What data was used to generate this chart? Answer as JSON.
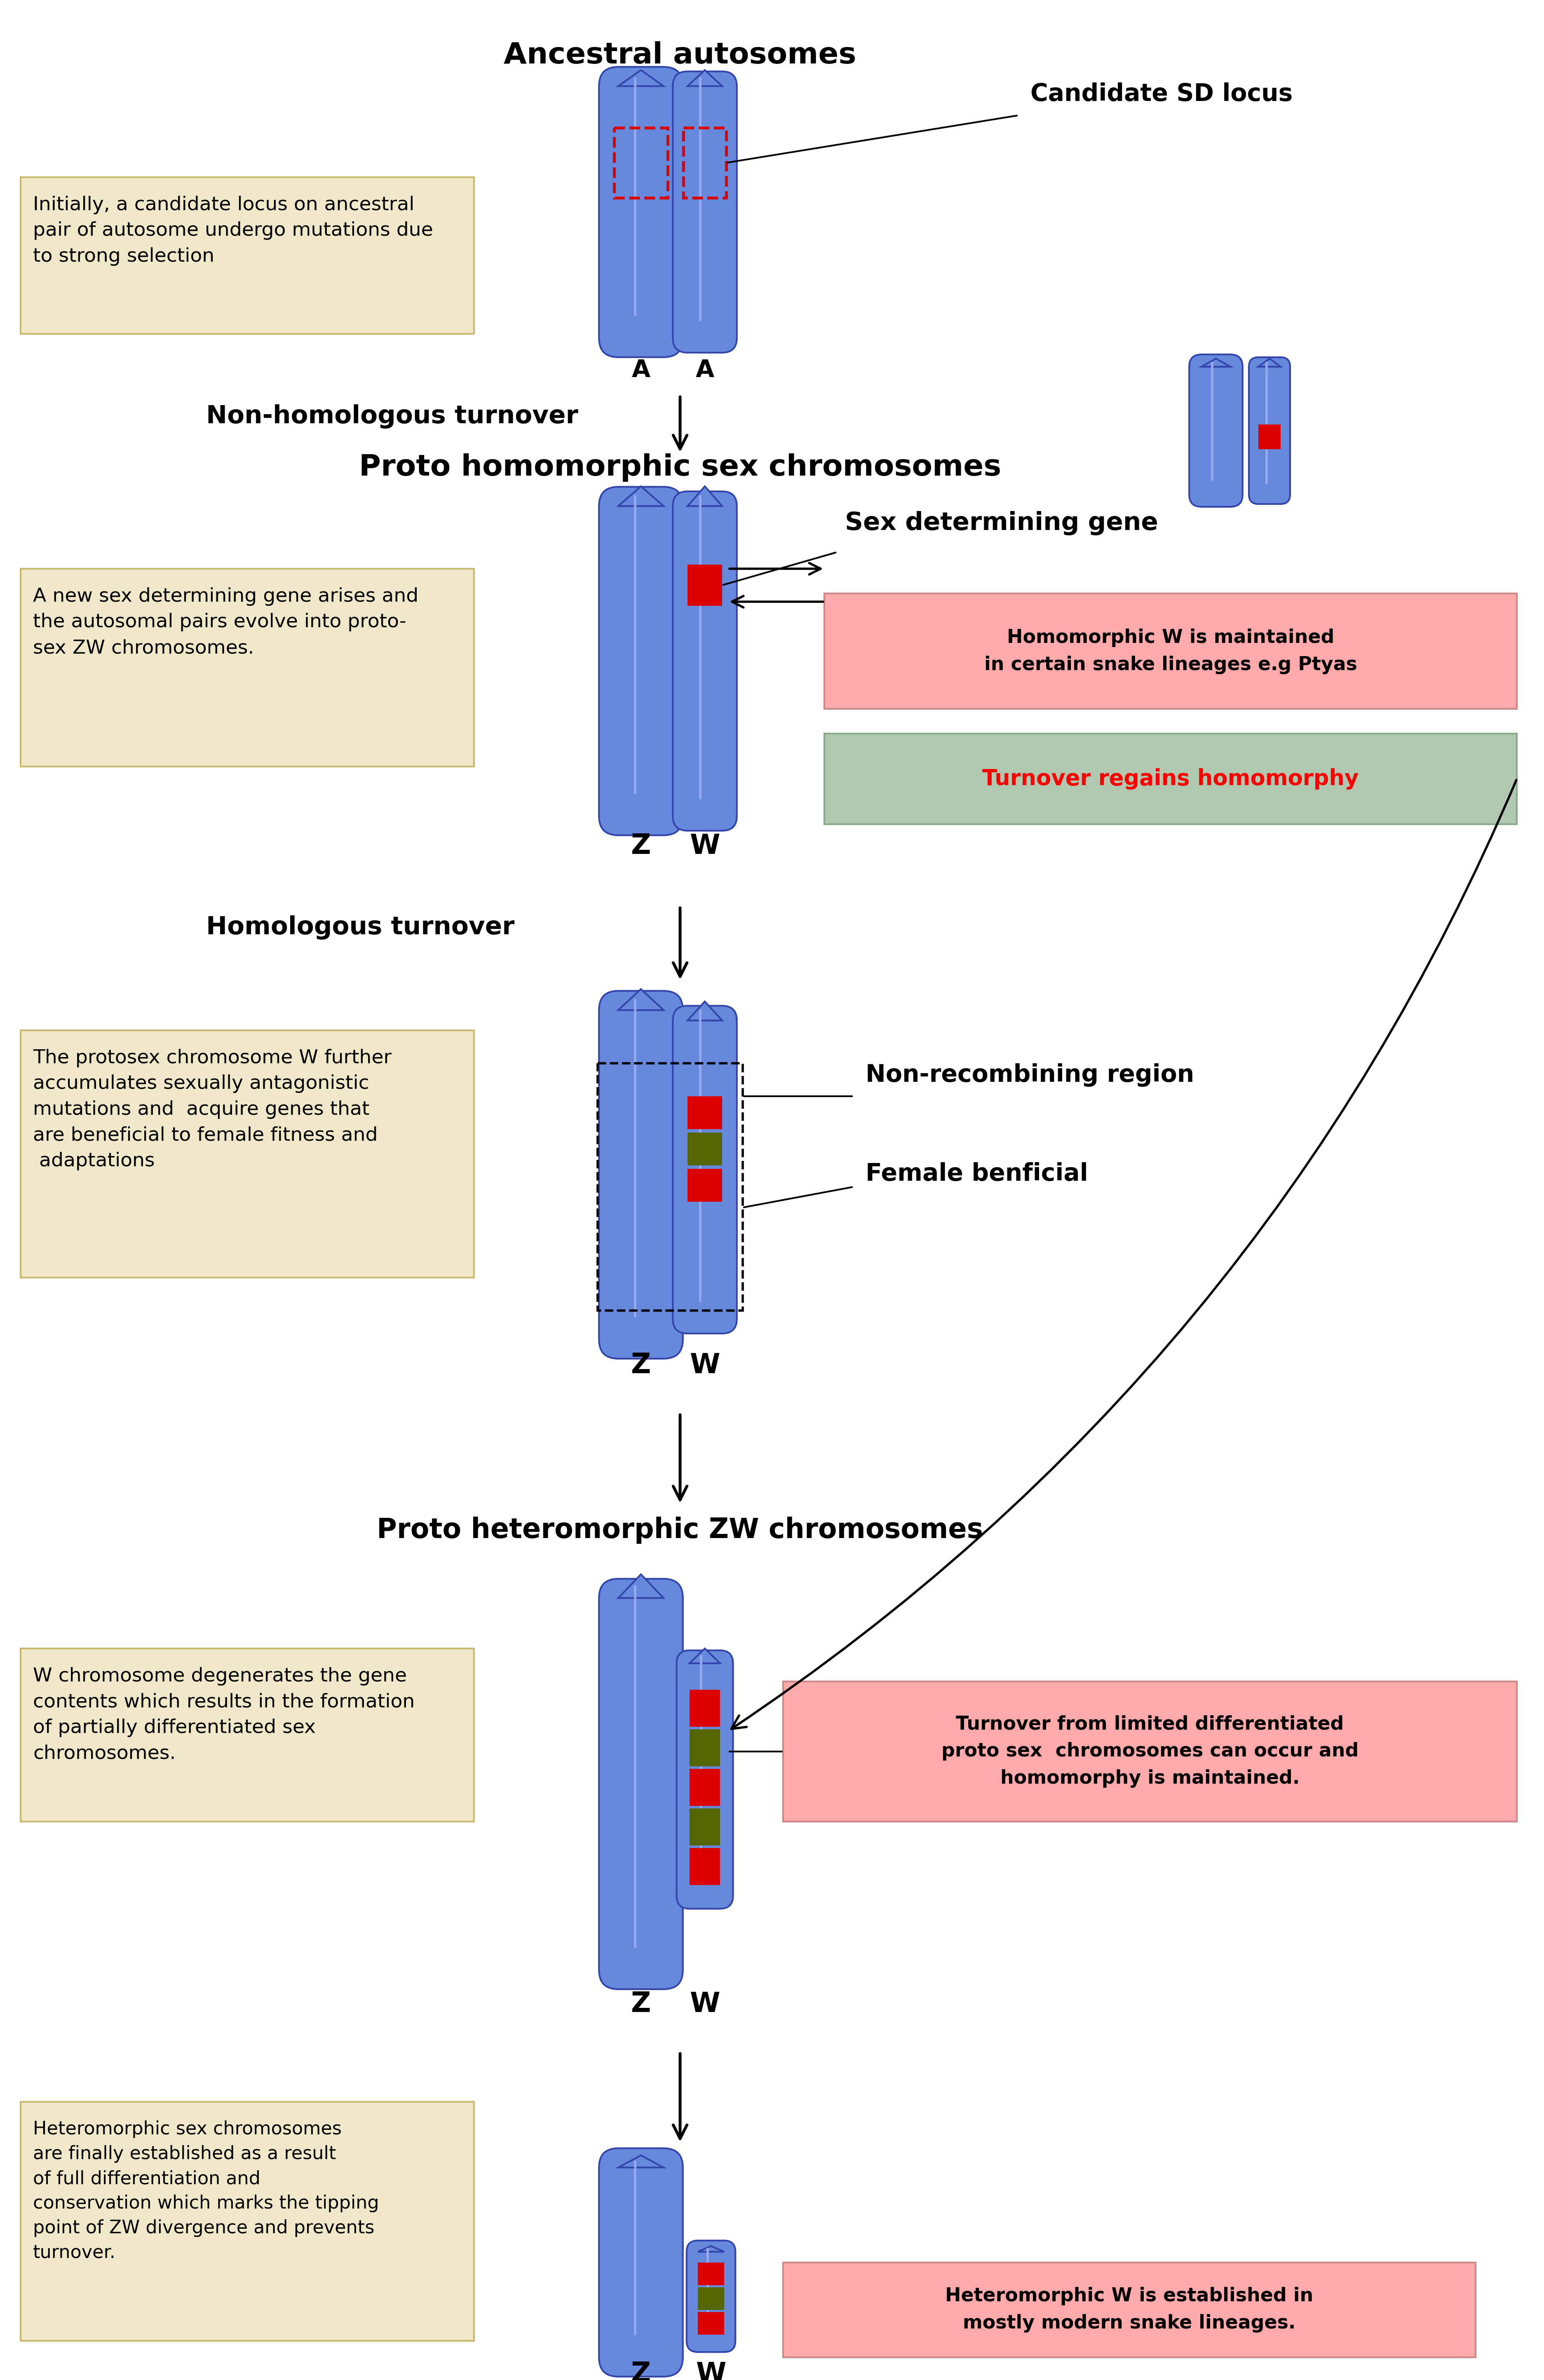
{
  "bg_color": "#ffffff",
  "chrom_color": "#6688dd",
  "chrom_highlight": "#99aaee",
  "chrom_edge": "#3344aa",
  "red_color": "#dd0000",
  "green_color": "#556600",
  "pink_box_color": "#ffaaaa",
  "green_box_color": "#b0c8b0",
  "tan_box_color": "#f0e8c8",
  "tan_box_edge": "#c8b870",
  "pink_box_edge": "#cc8888",
  "green_box_edge": "#88aa88",
  "sections": {
    "s1_title": "Ancestral autosomes",
    "s2_title": "Proto homomorphic sex chromosomes",
    "s3_label_ht": "Homologous turnover",
    "s3_label_nht": "Non-homologous turnover",
    "s4_title": "Proto heteromorphic ZW chromosomes",
    "sd_gene_label": "Sex determining gene",
    "candidate_label": "Candidate SD locus",
    "non_recomb_label": "Non-recombining region",
    "female_ben_label": "Female benficial",
    "pink1_text": "Homomorphic W is maintained\nin certain snake lineages e.g Ptyas",
    "green1_text": "Turnover regains homomorphy",
    "pink2_text": "Turnover from limited differentiated\nproto sex  chromosomes can occur and\nhomomorphy is maintained.",
    "pink3_text": "Heteromorphic W is established in\nmostly modern snake lineages.",
    "tan1_text": "Initially, a candidate locus on ancestral\npair of autosome undergo mutations due\nto strong selection",
    "tan2_text": "A new sex determining gene arises and\nthe autosomal pairs evolve into proto-\nsex ZW chromosomes.",
    "tan3_text": "The protosex chromosome W further\naccumulates sexually antagonistic\nmutations and  acquire genes that\nare beneficial to female fitness and\n adaptations",
    "tan4_text": "W chromosome degenerates the gene\ncontents which results in the formation\nof partially differentiated sex\nchromosomes.",
    "tan5_text": "Heteromorphic sex chromosomes\nare finally established as a result\nof full differentiation and\nconservation which marks the tipping\npoint of ZW divergence and prevents\nturnover."
  }
}
